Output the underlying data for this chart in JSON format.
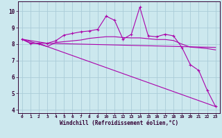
{
  "xlabel": "Windchill (Refroidissement éolien,°C)",
  "bg_color": "#cce8ee",
  "grid_color": "#aaccd8",
  "line_color": "#aa00aa",
  "spine_color": "#330033",
  "xlim": [
    -0.5,
    23.5
  ],
  "ylim": [
    3.8,
    10.6
  ],
  "yticks": [
    4,
    5,
    6,
    7,
    8,
    9,
    10
  ],
  "xticks": [
    0,
    1,
    2,
    3,
    4,
    5,
    6,
    7,
    8,
    9,
    10,
    11,
    12,
    13,
    14,
    15,
    16,
    17,
    18,
    19,
    20,
    21,
    22,
    23
  ],
  "line1_x": [
    0,
    1,
    2,
    3,
    4,
    5,
    6,
    7,
    8,
    9,
    10,
    11,
    12,
    13,
    14,
    15,
    16,
    17,
    18,
    19,
    20,
    21,
    22,
    23
  ],
  "line1_y": [
    8.3,
    8.05,
    8.05,
    8.05,
    8.2,
    8.55,
    8.65,
    8.75,
    8.8,
    8.9,
    9.7,
    9.45,
    8.3,
    8.6,
    10.25,
    8.5,
    8.45,
    8.6,
    8.5,
    7.8,
    6.75,
    6.4,
    5.2,
    4.2
  ],
  "line2_x": [
    0,
    1,
    2,
    3,
    4,
    5,
    6,
    7,
    8,
    9,
    10,
    11,
    12,
    13,
    14,
    15,
    16,
    17,
    18,
    19,
    20,
    21,
    22,
    23
  ],
  "line2_y": [
    8.3,
    8.05,
    8.05,
    7.85,
    8.1,
    8.15,
    8.2,
    8.25,
    8.35,
    8.4,
    8.45,
    8.45,
    8.4,
    8.38,
    8.38,
    8.33,
    8.28,
    8.28,
    8.22,
    8.0,
    7.82,
    7.78,
    7.73,
    7.65
  ],
  "line3_x": [
    0,
    3,
    23
  ],
  "line3_y": [
    8.3,
    8.05,
    7.8
  ],
  "line4_x": [
    0,
    3,
    23
  ],
  "line4_y": [
    8.3,
    7.85,
    4.2
  ]
}
